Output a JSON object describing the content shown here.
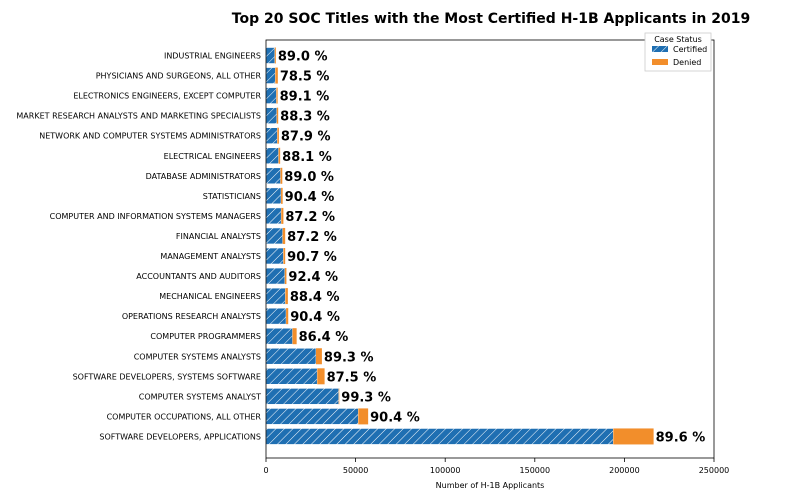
{
  "chart_data": {
    "type": "bar",
    "orientation": "horizontal",
    "stacked": true,
    "title": "Top 20 SOC Titles with the Most Certified H-1B Applicants in 2019",
    "xlabel": "Number of H-1B Applicants",
    "ylabel": "",
    "xlim": [
      0,
      250000
    ],
    "x_ticks": [
      "0",
      "50000",
      "100000",
      "150000",
      "200000",
      "250000"
    ],
    "grid": false,
    "legend": {
      "title": "Case Status",
      "placement": "top-right",
      "entries": [
        "Certified",
        "Denied"
      ]
    },
    "colors": {
      "certified": "#1f6fb2",
      "denied": "#f28e2b"
    },
    "categories": [
      "INDUSTRIAL ENGINEERS",
      "PHYSICIANS AND SURGEONS, ALL OTHER",
      "ELECTRONICS ENGINEERS, EXCEPT COMPUTER",
      "MARKET RESEARCH ANALYSTS AND MARKETING SPECIALISTS",
      "NETWORK AND COMPUTER SYSTEMS ADMINISTRATORS",
      "ELECTRICAL ENGINEERS",
      "DATABASE ADMINISTRATORS",
      "STATISTICIANS",
      "COMPUTER AND INFORMATION SYSTEMS MANAGERS",
      "FINANCIAL ANALYSTS",
      "MANAGEMENT ANALYSTS",
      "ACCOUNTANTS AND AUDITORS",
      "MECHANICAL ENGINEERS",
      "OPERATIONS RESEARCH ANALYSTS",
      "COMPUTER PROGRAMMERS",
      "COMPUTER SYSTEMS ANALYSTS",
      "SOFTWARE DEVELOPERS, SYSTEMS SOFTWARE",
      "COMPUTER SYSTEMS ANALYST",
      "COMPUTER OCCUPATIONS, ALL OTHER",
      "SOFTWARE DEVELOPERS, APPLICATIONS"
    ],
    "series": [
      {
        "name": "Certified",
        "values": [
          4900,
          5200,
          5800,
          6000,
          6300,
          7000,
          8100,
          8400,
          8500,
          9300,
          9700,
          10500,
          10800,
          11200,
          14800,
          27900,
          28600,
          40600,
          51500,
          193800
        ]
      },
      {
        "name": "Denied",
        "values": [
          600,
          1400,
          700,
          800,
          900,
          900,
          1000,
          900,
          1200,
          1400,
          1000,
          900,
          1400,
          1200,
          2300,
          3300,
          4100,
          300,
          5500,
          22500
        ]
      }
    ],
    "percent_labels": [
      "89.0 %",
      "78.5 %",
      "89.1 %",
      "88.3 %",
      "87.9 %",
      "88.1 %",
      "89.0 %",
      "90.4 %",
      "87.2 %",
      "87.2 %",
      "90.7 %",
      "92.4 %",
      "88.4 %",
      "90.4 %",
      "86.4 %",
      "89.3 %",
      "87.5 %",
      "99.3 %",
      "90.4 %",
      "89.6 %"
    ]
  }
}
